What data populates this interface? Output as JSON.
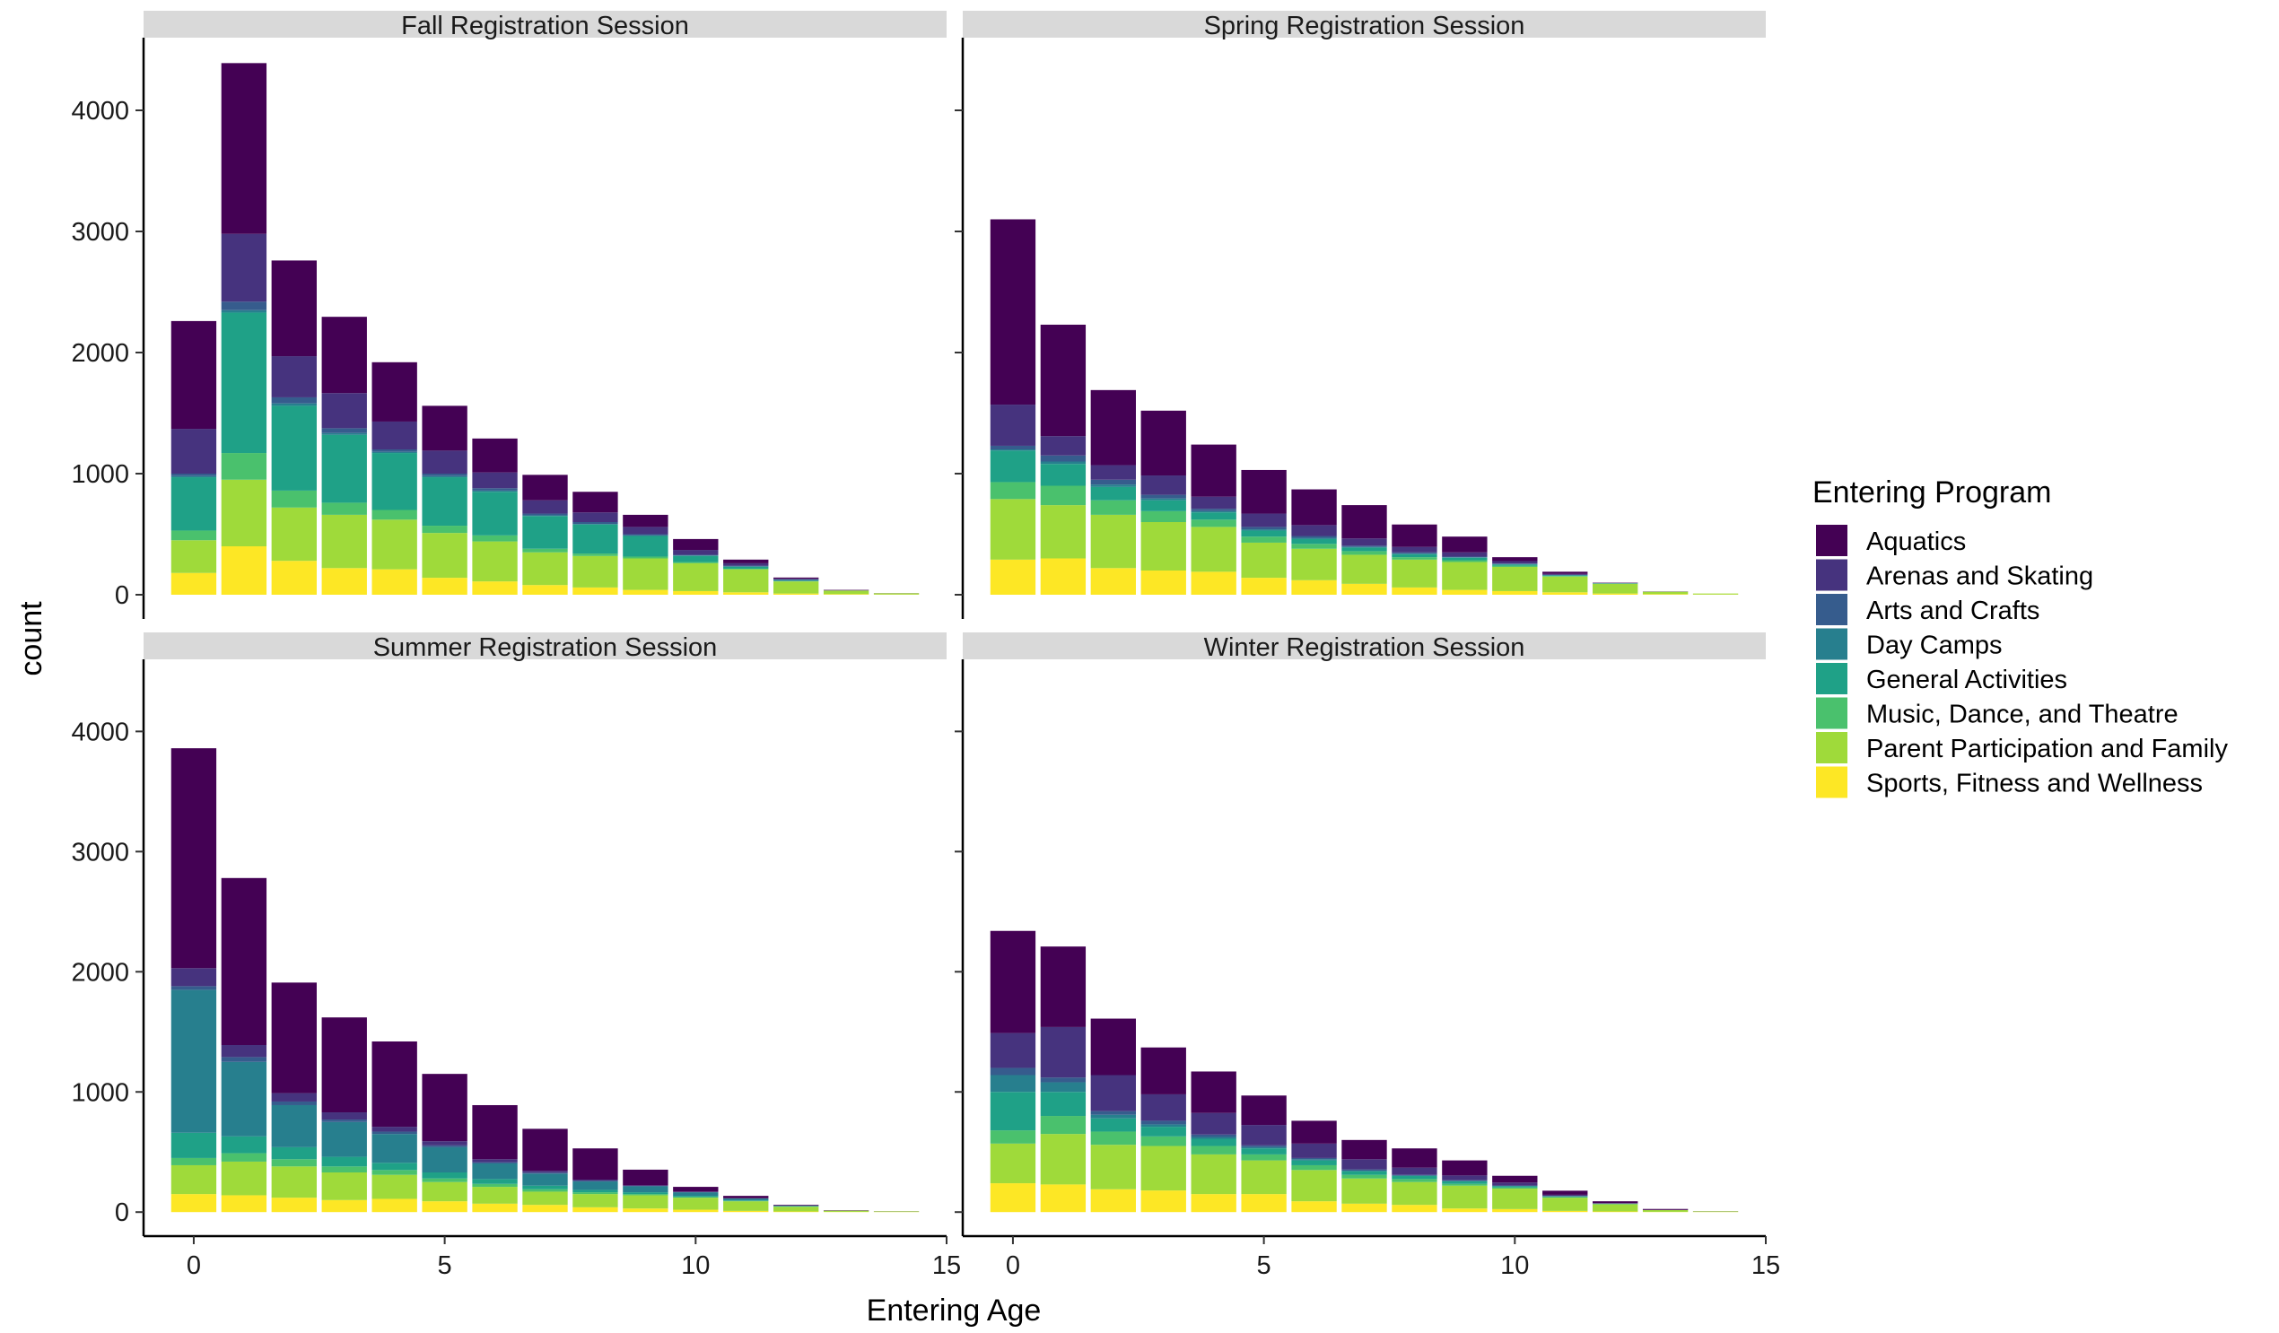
{
  "chart_data": {
    "type": "bar",
    "stacked": true,
    "facet_by": "Registration Session",
    "xlabel": "Entering Age",
    "ylabel": "count",
    "xlim": [
      -1,
      15
    ],
    "ylim": [
      -200,
      4600
    ],
    "x_ticks": [
      0,
      5,
      10,
      15
    ],
    "y_ticks": [
      0,
      1000,
      2000,
      3000,
      4000
    ],
    "legend": {
      "title": "Entering Program",
      "position": "right",
      "entries": [
        {
          "name": "Aquatics",
          "color": "#440154"
        },
        {
          "name": "Arenas and Skating",
          "color": "#46337E"
        },
        {
          "name": "Arts and Crafts",
          "color": "#365C8D"
        },
        {
          "name": "Day Camps",
          "color": "#277F8E"
        },
        {
          "name": "General Activities",
          "color": "#1FA187"
        },
        {
          "name": "Music, Dance, and Theatre",
          "color": "#4AC16D"
        },
        {
          "name": "Parent Participation and Family",
          "color": "#9FDA3A"
        },
        {
          "name": "Sports, Fitness and Wellness",
          "color": "#FDE725"
        }
      ]
    },
    "x": [
      0,
      1,
      2,
      3,
      4,
      5,
      6,
      7,
      8,
      9,
      10,
      11,
      12,
      13,
      14
    ],
    "stack_order_bottom_to_top": [
      "Sports, Fitness and Wellness",
      "Parent Participation and Family",
      "Music, Dance, and Theatre",
      "General Activities",
      "Day Camps",
      "Arts and Crafts",
      "Arenas and Skating",
      "Aquatics"
    ],
    "panels": [
      {
        "title": "Fall Registration Session",
        "series": [
          {
            "name": "Sports, Fitness and Wellness",
            "values": [
              180,
              400,
              280,
              220,
              210,
              140,
              110,
              80,
              60,
              40,
              30,
              20,
              10,
              5,
              2
            ]
          },
          {
            "name": "Parent Participation and Family",
            "values": [
              270,
              550,
              440,
              440,
              410,
              370,
              330,
              270,
              260,
              260,
              230,
              190,
              100,
              30,
              10
            ]
          },
          {
            "name": "Music, Dance, and Theatre",
            "values": [
              80,
              220,
              140,
              100,
              80,
              60,
              50,
              30,
              20,
              15,
              10,
              5,
              2,
              0,
              0
            ]
          },
          {
            "name": "General Activities",
            "values": [
              440,
              1160,
              700,
              560,
              470,
              400,
              360,
              270,
              240,
              170,
              50,
              15,
              5,
              0,
              0
            ]
          },
          {
            "name": "Day Camps",
            "values": [
              10,
              20,
              20,
              15,
              10,
              10,
              10,
              5,
              5,
              5,
              5,
              5,
              5,
              0,
              0
            ]
          },
          {
            "name": "Arts and Crafts",
            "values": [
              20,
              70,
              50,
              40,
              20,
              20,
              20,
              15,
              15,
              10,
              5,
              5,
              5,
              0,
              0
            ]
          },
          {
            "name": "Arenas and Skating",
            "values": [
              370,
              560,
              340,
              290,
              230,
              190,
              130,
              110,
              80,
              60,
              40,
              20,
              5,
              2,
              0
            ]
          },
          {
            "name": "Aquatics",
            "values": [
              890,
              1410,
              790,
              630,
              490,
              370,
              280,
              210,
              170,
              100,
              90,
              30,
              10,
              3,
              1
            ]
          }
        ]
      },
      {
        "title": "Spring Registration Session",
        "series": [
          {
            "name": "Sports, Fitness and Wellness",
            "values": [
              290,
              300,
              220,
              200,
              190,
              140,
              120,
              90,
              60,
              40,
              30,
              20,
              10,
              5,
              2
            ]
          },
          {
            "name": "Parent Participation and Family",
            "values": [
              500,
              440,
              440,
              400,
              370,
              290,
              260,
              240,
              230,
              230,
              200,
              130,
              80,
              20,
              8
            ]
          },
          {
            "name": "Music, Dance, and Theatre",
            "values": [
              140,
              160,
              120,
              90,
              60,
              50,
              40,
              30,
              20,
              15,
              10,
              5,
              2,
              0,
              0
            ]
          },
          {
            "name": "General Activities",
            "values": [
              260,
              180,
              110,
              90,
              60,
              50,
              40,
              30,
              25,
              20,
              10,
              5,
              3,
              0,
              0
            ]
          },
          {
            "name": "Day Camps",
            "values": [
              10,
              20,
              20,
              15,
              10,
              10,
              10,
              5,
              5,
              5,
              3,
              2,
              0,
              0,
              0
            ]
          },
          {
            "name": "Arts and Crafts",
            "values": [
              30,
              50,
              40,
              30,
              20,
              20,
              15,
              10,
              10,
              5,
              5,
              2,
              0,
              0,
              0
            ]
          },
          {
            "name": "Arenas and Skating",
            "values": [
              340,
              160,
              120,
              160,
              100,
              110,
              90,
              60,
              45,
              35,
              20,
              8,
              2,
              1,
              0
            ]
          },
          {
            "name": "Aquatics",
            "values": [
              1530,
              920,
              620,
              535,
              430,
              360,
              295,
              275,
              185,
              130,
              32,
              18,
              3,
              1,
              0
            ]
          }
        ]
      },
      {
        "title": "Summer Registration Session",
        "series": [
          {
            "name": "Sports, Fitness and Wellness",
            "values": [
              150,
              140,
              120,
              100,
              110,
              90,
              70,
              60,
              40,
              30,
              20,
              10,
              5,
              2,
              1
            ]
          },
          {
            "name": "Parent Participation and Family",
            "values": [
              240,
              280,
              260,
              230,
              200,
              160,
              140,
              110,
              110,
              110,
              100,
              80,
              40,
              10,
              5
            ]
          },
          {
            "name": "Music, Dance, and Theatre",
            "values": [
              60,
              70,
              60,
              50,
              40,
              30,
              25,
              20,
              15,
              10,
              5,
              3,
              2,
              0,
              0
            ]
          },
          {
            "name": "General Activities",
            "values": [
              210,
              140,
              100,
              80,
              60,
              50,
              40,
              30,
              20,
              15,
              10,
              5,
              2,
              0,
              0
            ]
          },
          {
            "name": "Day Camps",
            "values": [
              1190,
              620,
              350,
              290,
              240,
              210,
              130,
              100,
              70,
              50,
              30,
              15,
              5,
              0,
              0
            ]
          },
          {
            "name": "Arts and Crafts",
            "values": [
              30,
              40,
              30,
              20,
              20,
              15,
              10,
              8,
              5,
              3,
              2,
              1,
              0,
              0,
              0
            ]
          },
          {
            "name": "Arenas and Skating",
            "values": [
              150,
              100,
              70,
              60,
              40,
              35,
              25,
              15,
              10,
              5,
              3,
              1,
              0,
              0,
              0
            ]
          },
          {
            "name": "Aquatics",
            "values": [
              1830,
              1390,
              920,
              790,
              710,
              560,
              450,
              350,
              260,
              130,
              40,
              20,
              6,
              3,
              1
            ]
          }
        ]
      },
      {
        "title": "Winter Registration Session",
        "series": [
          {
            "name": "Sports, Fitness and Wellness",
            "values": [
              240,
              230,
              190,
              180,
              150,
              150,
              90,
              70,
              60,
              30,
              25,
              10,
              5,
              2,
              1
            ]
          },
          {
            "name": "Parent Participation and Family",
            "values": [
              330,
              420,
              370,
              370,
              330,
              280,
              260,
              210,
              190,
              190,
              170,
              110,
              60,
              15,
              5
            ]
          },
          {
            "name": "Music, Dance, and Theatre",
            "values": [
              110,
              150,
              110,
              80,
              70,
              50,
              40,
              30,
              25,
              15,
              10,
              5,
              2,
              0,
              0
            ]
          },
          {
            "name": "General Activities",
            "values": [
              320,
              200,
              110,
              80,
              60,
              50,
              40,
              30,
              25,
              20,
              10,
              5,
              2,
              0,
              0
            ]
          },
          {
            "name": "Day Camps",
            "values": [
              140,
              80,
              30,
              20,
              15,
              10,
              10,
              5,
              5,
              5,
              3,
              2,
              1,
              0,
              0
            ]
          },
          {
            "name": "Arts and Crafts",
            "values": [
              60,
              40,
              30,
              30,
              20,
              15,
              10,
              10,
              5,
              5,
              3,
              2,
              1,
              0,
              0
            ]
          },
          {
            "name": "Arenas and Skating",
            "values": [
              290,
              420,
              300,
              220,
              180,
              170,
              120,
              85,
              60,
              40,
              25,
              10,
              3,
              1,
              0
            ]
          },
          {
            "name": "Aquatics",
            "values": [
              850,
              670,
              470,
              390,
              345,
              245,
              190,
              160,
              160,
              125,
              56,
              34,
              16,
              8,
              1
            ]
          }
        ]
      }
    ]
  }
}
